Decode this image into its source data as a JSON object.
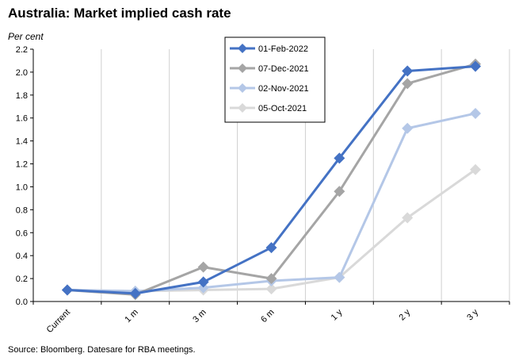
{
  "header": {
    "title": "Australia: Market implied cash rate",
    "units": "Per cent"
  },
  "footer": {
    "source": "Source: Bloomberg. Datesare for RBA meetings."
  },
  "chart_data": {
    "type": "line",
    "title": "Australia: Market implied cash rate",
    "ylabel": "Per cent",
    "xlabel": "",
    "categories": [
      "Current",
      "1 m",
      "3 m",
      "6 m",
      "1 y",
      "2 y",
      "3 y"
    ],
    "ylim": [
      0,
      2.2
    ],
    "yticks": [
      "0.0",
      "0.2",
      "0.4",
      "0.6",
      "0.8",
      "1.0",
      "1.2",
      "1.4",
      "1.6",
      "1.8",
      "2.0",
      "2.2"
    ],
    "grid": "vertical",
    "legend_position": "top-center",
    "series": [
      {
        "name": "01-Feb-2022",
        "color": "#4472C4",
        "values": [
          0.1,
          0.07,
          0.17,
          0.47,
          1.25,
          2.01,
          2.05
        ]
      },
      {
        "name": "07-Dec-2021",
        "color": "#A5A5A5",
        "values": [
          0.1,
          0.06,
          0.3,
          0.2,
          0.96,
          1.9,
          2.07
        ]
      },
      {
        "name": "02-Nov-2021",
        "color": "#B4C7E7",
        "values": [
          0.1,
          0.09,
          0.12,
          0.18,
          0.21,
          1.51,
          1.64
        ]
      },
      {
        "name": "05-Oct-2021",
        "color": "#D9D9D9",
        "values": [
          0.1,
          0.09,
          0.1,
          0.11,
          0.21,
          0.73,
          1.15
        ]
      }
    ]
  }
}
